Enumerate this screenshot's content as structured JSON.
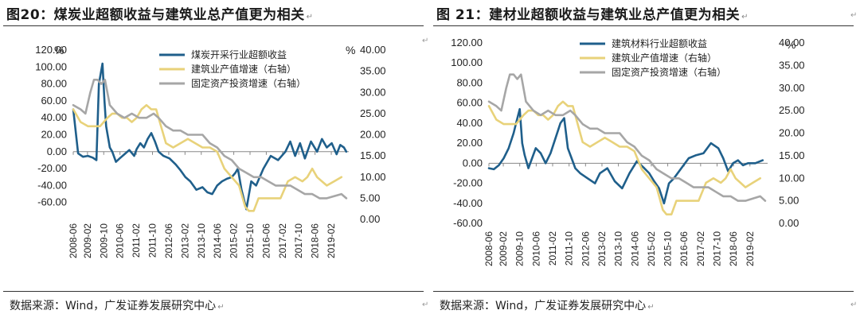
{
  "charts": [
    {
      "title": "图20：煤炭业超额收益与建筑业总产值更为相关",
      "source": "数据来源：Wind，广发证券发展研究中心",
      "chart_data": {
        "type": "line",
        "y_left": {
          "unit": "%",
          "range": [
            -80,
            120
          ],
          "ticks": [
            -80,
            -60,
            -40,
            -20,
            0,
            20,
            40,
            60,
            80,
            100,
            120
          ],
          "labels": [
            "",
            "-60.00",
            "-40.00",
            "-20.00",
            "0.00",
            "20.00",
            "40.00",
            "60.00",
            "80.00",
            "100.00",
            "120.00"
          ]
        },
        "y_right": {
          "unit": "%",
          "range": [
            0,
            40
          ],
          "ticks": [
            0,
            5,
            10,
            15,
            20,
            25,
            30,
            35,
            40
          ],
          "labels": [
            "0.00",
            "5.00",
            "10.00",
            "15.00",
            "20.00",
            "25.00",
            "30.00",
            "35.00",
            "40.00"
          ]
        },
        "x_range": [
          2008.5,
          2019.8
        ],
        "x_ticks": [
          2008.5,
          2009.083,
          2009.75,
          2010.417,
          2011.083,
          2011.75,
          2012.417,
          2013.083,
          2013.75,
          2014.417,
          2015.083,
          2015.75,
          2016.417,
          2017.083,
          2017.75,
          2018.417,
          2019.083
        ],
        "x_labels": [
          "2008-06",
          "2009-02",
          "2009-10",
          "2010-06",
          "2011-02",
          "2011-10",
          "2012-06",
          "2013-02",
          "2013-10",
          "2014-06",
          "2015-02",
          "2015-10",
          "2016-06",
          "2017-02",
          "2017-10",
          "2018-06",
          "2019-02"
        ],
        "series": [
          {
            "name": "煤炭开采行业超额收益",
            "axis": "left",
            "color": "#1f5f8b",
            "x": [
              2008.5,
              2008.7,
              2008.9,
              2009.1,
              2009.3,
              2009.45,
              2009.55,
              2009.7,
              2009.78,
              2009.85,
              2010.0,
              2010.1,
              2010.25,
              2010.4,
              2010.6,
              2010.8,
              2011.0,
              2011.1,
              2011.25,
              2011.4,
              2011.55,
              2011.7,
              2011.85,
              2012.0,
              2012.2,
              2012.45,
              2012.7,
              2012.9,
              2013.1,
              2013.3,
              2013.55,
              2013.8,
              2014.0,
              2014.2,
              2014.4,
              2014.6,
              2014.8,
              2015.0,
              2015.15,
              2015.25,
              2015.4,
              2015.6,
              2015.8,
              2016.0,
              2016.3,
              2016.6,
              2016.9,
              2017.2,
              2017.4,
              2017.6,
              2017.8,
              2018.0,
              2018.25,
              2018.5,
              2018.7,
              2018.9,
              2019.1,
              2019.3,
              2019.45,
              2019.6,
              2019.7
            ],
            "values": [
              50,
              -2,
              -6,
              -5,
              -7,
              -10,
              80,
              104,
              60,
              30,
              5,
              0,
              -12,
              -8,
              -3,
              2,
              -5,
              3,
              10,
              5,
              15,
              22,
              12,
              0,
              -5,
              -8,
              -15,
              -22,
              -30,
              -35,
              -45,
              -42,
              -48,
              -50,
              -40,
              -35,
              -32,
              -30,
              -25,
              -20,
              -45,
              -68,
              -35,
              -40,
              -20,
              -5,
              -10,
              0,
              12,
              -5,
              10,
              -8,
              12,
              0,
              15,
              5,
              10,
              -3,
              8,
              5,
              0
            ]
          },
          {
            "name": "建筑业产值增速（右轴）",
            "axis": "right",
            "color": "#e8d27a",
            "x": [
              2008.5,
              2008.8,
              2009.1,
              2009.4,
              2009.6,
              2009.75,
              2009.9,
              2010.1,
              2010.3,
              2010.5,
              2010.7,
              2010.9,
              2011.1,
              2011.3,
              2011.5,
              2011.7,
              2011.9,
              2012.1,
              2012.3,
              2012.6,
              2012.9,
              2013.2,
              2013.5,
              2013.8,
              2014.1,
              2014.4,
              2014.7,
              2015.0,
              2015.3,
              2015.55,
              2015.7,
              2015.9,
              2016.1,
              2016.4,
              2016.7,
              2017.0,
              2017.3,
              2017.6,
              2017.9,
              2018.1,
              2018.3,
              2018.5,
              2018.7,
              2018.9,
              2019.2,
              2019.5
            ],
            "values": [
              26,
              23,
              22,
              22,
              22,
              23,
              24,
              25,
              25,
              24,
              24,
              23,
              24,
              26,
              27,
              26,
              26,
              22,
              18,
              17,
              18,
              19,
              18,
              17,
              17,
              16,
              12,
              10,
              8,
              3,
              2,
              2,
              5,
              5,
              5,
              5,
              9,
              10,
              9,
              10,
              12,
              10,
              9,
              8,
              9,
              10
            ]
          },
          {
            "name": "固定资产投资增速（右轴）",
            "axis": "right",
            "color": "#a6a6a6",
            "x": [
              2008.5,
              2008.8,
              2009.0,
              2009.2,
              2009.35,
              2009.5,
              2009.65,
              2009.8,
              2010.0,
              2010.3,
              2010.6,
              2010.9,
              2011.2,
              2011.5,
              2011.8,
              2012.0,
              2012.3,
              2012.6,
              2012.9,
              2013.2,
              2013.5,
              2013.8,
              2014.1,
              2014.4,
              2014.7,
              2015.0,
              2015.3,
              2015.6,
              2015.9,
              2016.2,
              2016.5,
              2016.8,
              2017.1,
              2017.4,
              2017.7,
              2018.0,
              2018.3,
              2018.6,
              2018.9,
              2019.2,
              2019.5,
              2019.7
            ],
            "values": [
              27,
              26,
              25,
              30,
              33,
              33,
              32,
              33,
              27,
              25,
              24,
              25,
              24,
              24,
              25,
              24,
              22,
              21,
              21,
              20,
              20,
              20,
              18,
              17,
              15,
              14,
              12,
              11,
              10,
              10,
              9,
              8,
              8,
              8,
              7,
              6,
              6,
              5,
              5,
              5.5,
              6,
              5
            ]
          }
        ]
      }
    },
    {
      "title": "图 21：建材业超额收益与建筑业总产值更为相关",
      "source": "数据来源：Wind，广发证券发展研究中心",
      "chart_data": {
        "type": "line",
        "y_left": {
          "unit": "",
          "range": [
            -60,
            120
          ],
          "ticks": [
            -60,
            -40,
            -20,
            0,
            20,
            40,
            60,
            80,
            100,
            120
          ],
          "labels": [
            "-60.00",
            "-40.00",
            "-20.00",
            "0.00",
            "20.00",
            "40.00",
            "60.00",
            "80.00",
            "100.00",
            "120.00"
          ]
        },
        "y_right": {
          "unit": "%",
          "range": [
            0,
            40
          ],
          "ticks": [
            0,
            5,
            10,
            15,
            20,
            25,
            30,
            35,
            40
          ],
          "labels": [
            "0.00",
            "5.00",
            "10.00",
            "15.00",
            "20.00",
            "25.00",
            "30.00",
            "35.00",
            "40.00"
          ]
        },
        "x_range": [
          2008.5,
          2019.8
        ],
        "x_ticks": [
          2008.5,
          2009.083,
          2009.75,
          2010.417,
          2011.083,
          2011.75,
          2012.417,
          2013.083,
          2013.75,
          2014.417,
          2015.083,
          2015.75,
          2016.417,
          2017.083,
          2017.75,
          2018.417,
          2019.083
        ],
        "x_labels": [
          "2008-06",
          "2009-02",
          "2009-10",
          "2010-06",
          "2011-02",
          "2011-10",
          "2012-06",
          "2013-02",
          "2013-10",
          "2014-06",
          "2015-02",
          "2015-10",
          "2016-06",
          "2017-02",
          "2017-10",
          "2018-06",
          "2019-02"
        ],
        "series": [
          {
            "name": "建筑材料行业超额收益",
            "axis": "left",
            "color": "#1f5f8b",
            "x": [
              2008.5,
              2008.7,
              2008.9,
              2009.1,
              2009.3,
              2009.5,
              2009.6,
              2009.75,
              2009.85,
              2009.95,
              2010.1,
              2010.25,
              2010.4,
              2010.6,
              2010.8,
              2011.0,
              2011.2,
              2011.4,
              2011.55,
              2011.7,
              2011.85,
              2012.0,
              2012.2,
              2012.5,
              2012.8,
              2013.0,
              2013.3,
              2013.6,
              2013.9,
              2014.2,
              2014.5,
              2014.8,
              2015.0,
              2015.2,
              2015.4,
              2015.6,
              2015.8,
              2016.0,
              2016.3,
              2016.6,
              2016.9,
              2017.2,
              2017.5,
              2017.8,
              2018.0,
              2018.2,
              2018.4,
              2018.6,
              2018.8,
              2019.0,
              2019.3,
              2019.6
            ],
            "values": [
              -5,
              -6,
              -2,
              5,
              15,
              30,
              40,
              54,
              20,
              8,
              -5,
              5,
              15,
              10,
              0,
              10,
              25,
              40,
              45,
              15,
              5,
              -5,
              -10,
              -15,
              -20,
              -10,
              -5,
              -18,
              -25,
              -10,
              2,
              -5,
              -10,
              -18,
              -25,
              -40,
              -20,
              -15,
              -5,
              5,
              8,
              10,
              20,
              15,
              5,
              -8,
              0,
              3,
              -2,
              0,
              0,
              3
            ]
          },
          {
            "name": "建筑业产值增速（右轴）",
            "axis": "right",
            "color": "#e8d27a",
            "x": [
              2008.5,
              2008.8,
              2009.1,
              2009.4,
              2009.6,
              2009.75,
              2009.9,
              2010.1,
              2010.3,
              2010.5,
              2010.7,
              2010.9,
              2011.1,
              2011.3,
              2011.5,
              2011.7,
              2011.9,
              2012.1,
              2012.3,
              2012.6,
              2012.9,
              2013.2,
              2013.5,
              2013.8,
              2014.1,
              2014.4,
              2014.7,
              2015.0,
              2015.3,
              2015.55,
              2015.7,
              2015.9,
              2016.1,
              2016.4,
              2016.7,
              2017.0,
              2017.3,
              2017.6,
              2017.9,
              2018.1,
              2018.3,
              2018.5,
              2018.7,
              2018.9,
              2019.2,
              2019.5
            ],
            "values": [
              26,
              23,
              22,
              22,
              22,
              23,
              24,
              25,
              25,
              24,
              24,
              23,
              24,
              26,
              27,
              26,
              26,
              22,
              18,
              17,
              18,
              19,
              18,
              17,
              17,
              16,
              12,
              10,
              8,
              3,
              2,
              2,
              5,
              5,
              5,
              5,
              9,
              10,
              9,
              10,
              12,
              10,
              9,
              8,
              9,
              10
            ]
          },
          {
            "name": "固定资产投资增速（右轴）",
            "axis": "right",
            "color": "#a6a6a6",
            "x": [
              2008.5,
              2008.8,
              2009.0,
              2009.2,
              2009.35,
              2009.5,
              2009.65,
              2009.8,
              2010.0,
              2010.3,
              2010.6,
              2010.9,
              2011.2,
              2011.5,
              2011.8,
              2012.0,
              2012.3,
              2012.6,
              2012.9,
              2013.2,
              2013.5,
              2013.8,
              2014.1,
              2014.4,
              2014.7,
              2015.0,
              2015.3,
              2015.6,
              2015.9,
              2016.2,
              2016.5,
              2016.8,
              2017.1,
              2017.4,
              2017.7,
              2018.0,
              2018.3,
              2018.6,
              2018.9,
              2019.2,
              2019.5,
              2019.7
            ],
            "values": [
              27,
              26,
              25,
              30,
              33,
              33,
              32,
              33,
              27,
              25,
              24,
              25,
              24,
              24,
              25,
              24,
              22,
              21,
              21,
              20,
              20,
              20,
              18,
              17,
              15,
              14,
              12,
              11,
              10,
              10,
              9,
              8,
              8,
              8,
              7,
              6,
              6,
              5,
              5,
              5.5,
              6,
              5
            ]
          }
        ]
      }
    }
  ]
}
